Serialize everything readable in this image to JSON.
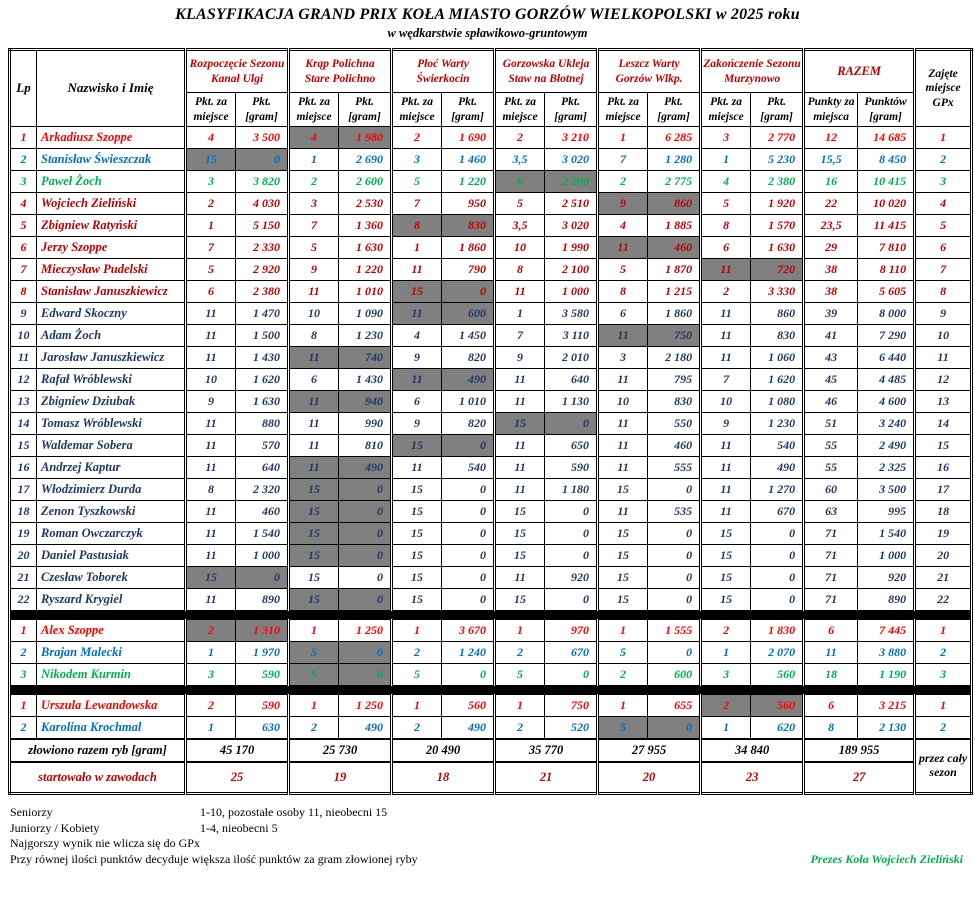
{
  "title": "KLASYFIKACJA GRAND PRIX KOŁA MIASTO GORZÓW WIELKOPOLSKI w 2025 roku",
  "subtitle": "w wędkarstwie spławikowo-gruntowym",
  "colors": {
    "red": "#FF0000",
    "blue": "#0070C0",
    "green": "#00B050",
    "darkred": "#C00000",
    "navy": "#1F3864",
    "header_red": "#C00000",
    "gray_cell": "#808080"
  },
  "header": {
    "lp": "Lp",
    "name": "Nazwisko i Imię",
    "events": [
      {
        "line1": "Rozpoczęcie Sezonu",
        "line2": "Kanał Ulgi"
      },
      {
        "line1": "Krąp Polichna",
        "line2": "Stare Polichno"
      },
      {
        "line1": "Płoć Warty",
        "line2": "Świerkocin"
      },
      {
        "line1": "Gorzowska Ukleja",
        "line2": "Staw na Błotnej"
      },
      {
        "line1": "Leszcz Warty",
        "line2": "Gorzów Wlkp."
      },
      {
        "line1": "Zakończenie Sezonu",
        "line2": "Murzynowo"
      }
    ],
    "razem": "RAZEM",
    "sub_place": "Pkt. za miejsce",
    "sub_gram": "Pkt. [gram]",
    "razem_points": "Punkty za miejsca",
    "razem_gram": "Punktów [gram]",
    "gpx": "Zajęte miejsce GPx"
  },
  "sections": [
    {
      "name": "seniorzy",
      "rows": [
        {
          "lp": "1",
          "name": "Arkadiusz Szoppe",
          "color": "red",
          "cells": [
            "4",
            "3 500",
            "4",
            "1 980",
            "2",
            "1 690",
            "2",
            "3 210",
            "1",
            "6 285",
            "3",
            "2 770",
            "12",
            "14 685",
            "1"
          ],
          "gray": [
            2,
            3
          ]
        },
        {
          "lp": "2",
          "name": "Stanisław Świeszczak",
          "color": "blue",
          "cells": [
            "15",
            "0",
            "1",
            "2 690",
            "3",
            "1 460",
            "3,5",
            "3 020",
            "7",
            "1 280",
            "1",
            "5 230",
            "15,5",
            "8 450",
            "2"
          ],
          "gray": [
            0,
            1
          ]
        },
        {
          "lp": "3",
          "name": "Paweł Żoch",
          "color": "green",
          "cells": [
            "3",
            "3 820",
            "2",
            "2 600",
            "5",
            "1 220",
            "6",
            "2 200",
            "2",
            "2 775",
            "4",
            "2 380",
            "16",
            "10 415",
            "3"
          ],
          "gray": [
            6,
            7
          ]
        },
        {
          "lp": "4",
          "name": "Wojciech Zieliński",
          "color": "darkred",
          "cells": [
            "2",
            "4 030",
            "3",
            "2 530",
            "7",
            "950",
            "5",
            "2 510",
            "9",
            "860",
            "5",
            "1 920",
            "22",
            "10 020",
            "4"
          ],
          "gray": [
            8,
            9
          ]
        },
        {
          "lp": "5",
          "name": "Zbigniew Ratyński",
          "color": "darkred",
          "cells": [
            "1",
            "5 150",
            "7",
            "1 360",
            "8",
            "830",
            "3,5",
            "3 020",
            "4",
            "1 885",
            "8",
            "1 570",
            "23,5",
            "11 415",
            "5"
          ],
          "gray": [
            4,
            5
          ]
        },
        {
          "lp": "6",
          "name": "Jerzy Szoppe",
          "color": "darkred",
          "cells": [
            "7",
            "2 330",
            "5",
            "1 630",
            "1",
            "1 860",
            "10",
            "1 990",
            "11",
            "460",
            "6",
            "1 630",
            "29",
            "7 810",
            "6"
          ],
          "gray": [
            8,
            9
          ]
        },
        {
          "lp": "7",
          "name": "Mieczysław Pudelski",
          "color": "darkred",
          "cells": [
            "5",
            "2 920",
            "9",
            "1 220",
            "11",
            "790",
            "8",
            "2 100",
            "5",
            "1 870",
            "11",
            "720",
            "38",
            "8 110",
            "7"
          ],
          "gray": [
            10,
            11
          ]
        },
        {
          "lp": "8",
          "name": "Stanisław Januszkiewicz",
          "color": "darkred",
          "cells": [
            "6",
            "2 380",
            "11",
            "1 010",
            "15",
            "0",
            "11",
            "1 000",
            "8",
            "1 215",
            "2",
            "3 330",
            "38",
            "5 605",
            "8"
          ],
          "gray": [
            4,
            5
          ]
        },
        {
          "lp": "9",
          "name": "Edward Skoczny",
          "color": "navy",
          "cells": [
            "11",
            "1 470",
            "10",
            "1 090",
            "11",
            "600",
            "1",
            "3 580",
            "6",
            "1 860",
            "11",
            "860",
            "39",
            "8 000",
            "9"
          ],
          "gray": [
            4,
            5
          ]
        },
        {
          "lp": "10",
          "name": "Adam Żoch",
          "color": "navy",
          "cells": [
            "11",
            "1 500",
            "8",
            "1 230",
            "4",
            "1 450",
            "7",
            "3 110",
            "11",
            "750",
            "11",
            "830",
            "41",
            "7 290",
            "10"
          ],
          "gray": [
            8,
            9
          ]
        },
        {
          "lp": "11",
          "name": "Jarosław Januszkiewicz",
          "color": "navy",
          "cells": [
            "11",
            "1 430",
            "11",
            "740",
            "9",
            "820",
            "9",
            "2 010",
            "3",
            "2 180",
            "11",
            "1 060",
            "43",
            "6 440",
            "11"
          ],
          "gray": [
            2,
            3
          ]
        },
        {
          "lp": "12",
          "name": "Rafał Wróblewski",
          "color": "navy",
          "cells": [
            "10",
            "1 620",
            "6",
            "1 430",
            "11",
            "490",
            "11",
            "640",
            "11",
            "795",
            "7",
            "1 620",
            "45",
            "4 485",
            "12"
          ],
          "gray": [
            4,
            5
          ]
        },
        {
          "lp": "13",
          "name": "Zbigniew Dziubak",
          "color": "navy",
          "cells": [
            "9",
            "1 630",
            "11",
            "940",
            "6",
            "1 010",
            "11",
            "1 130",
            "10",
            "830",
            "10",
            "1 080",
            "46",
            "4 600",
            "13"
          ],
          "gray": [
            2,
            3
          ]
        },
        {
          "lp": "14",
          "name": "Tomasz Wróblewski",
          "color": "navy",
          "cells": [
            "11",
            "880",
            "11",
            "990",
            "9",
            "820",
            "15",
            "0",
            "11",
            "550",
            "9",
            "1 230",
            "51",
            "3 240",
            "14"
          ],
          "gray": [
            6,
            7
          ]
        },
        {
          "lp": "15",
          "name": "Waldemar Sobera",
          "color": "navy",
          "cells": [
            "11",
            "570",
            "11",
            "810",
            "15",
            "0",
            "11",
            "650",
            "11",
            "460",
            "11",
            "540",
            "55",
            "2 490",
            "15"
          ],
          "gray": [
            4,
            5
          ]
        },
        {
          "lp": "16",
          "name": "Andrzej Kaptur",
          "color": "navy",
          "cells": [
            "11",
            "640",
            "11",
            "490",
            "11",
            "540",
            "11",
            "590",
            "11",
            "555",
            "11",
            "490",
            "55",
            "2 325",
            "16"
          ],
          "gray": [
            2,
            3
          ]
        },
        {
          "lp": "17",
          "name": "Włodzimierz Durda",
          "color": "navy",
          "cells": [
            "8",
            "2 320",
            "15",
            "0",
            "15",
            "0",
            "11",
            "1 180",
            "15",
            "0",
            "11",
            "1 270",
            "60",
            "3 500",
            "17"
          ],
          "gray": [
            2,
            3
          ]
        },
        {
          "lp": "18",
          "name": "Zenon Tyszkowski",
          "color": "navy",
          "cells": [
            "11",
            "460",
            "15",
            "0",
            "15",
            "0",
            "15",
            "0",
            "11",
            "535",
            "11",
            "670",
            "63",
            "995",
            "18"
          ],
          "gray": [
            2,
            3
          ]
        },
        {
          "lp": "19",
          "name": "Roman Owczarczyk",
          "color": "navy",
          "cells": [
            "11",
            "1 540",
            "15",
            "0",
            "15",
            "0",
            "15",
            "0",
            "15",
            "0",
            "15",
            "0",
            "71",
            "1 540",
            "19"
          ],
          "gray": [
            2,
            3
          ]
        },
        {
          "lp": "20",
          "name": "Daniel Pastusiak",
          "color": "navy",
          "cells": [
            "11",
            "1 000",
            "15",
            "0",
            "15",
            "0",
            "15",
            "0",
            "15",
            "0",
            "15",
            "0",
            "71",
            "1 000",
            "20"
          ],
          "gray": [
            2,
            3
          ]
        },
        {
          "lp": "21",
          "name": "Czesław Toborek",
          "color": "navy",
          "cells": [
            "15",
            "0",
            "15",
            "0",
            "15",
            "0",
            "11",
            "920",
            "15",
            "0",
            "15",
            "0",
            "71",
            "920",
            "21"
          ],
          "gray": [
            0,
            1
          ]
        },
        {
          "lp": "22",
          "name": "Ryszard Krygiel",
          "color": "navy",
          "cells": [
            "11",
            "890",
            "15",
            "0",
            "15",
            "0",
            "15",
            "0",
            "15",
            "0",
            "15",
            "0",
            "71",
            "890",
            "22"
          ],
          "gray": [
            2,
            3
          ]
        }
      ]
    },
    {
      "name": "juniorzy",
      "rows": [
        {
          "lp": "1",
          "name": "Alex Szoppe",
          "color": "red",
          "cells": [
            "2",
            "1 310",
            "1",
            "1 250",
            "1",
            "3 670",
            "1",
            "970",
            "1",
            "1 555",
            "2",
            "1 830",
            "6",
            "7 445",
            "1"
          ],
          "gray": [
            0,
            1
          ]
        },
        {
          "lp": "2",
          "name": "Brajan Malecki",
          "color": "blue",
          "cells": [
            "1",
            "1 970",
            "5",
            "0",
            "2",
            "1 240",
            "2",
            "670",
            "5",
            "0",
            "1",
            "2 070",
            "11",
            "3 880",
            "2"
          ],
          "gray": [
            2,
            3
          ]
        },
        {
          "lp": "3",
          "name": "Nikodem Kurmin",
          "color": "green",
          "cells": [
            "3",
            "590",
            "5",
            "0",
            "5",
            "0",
            "5",
            "0",
            "2",
            "600",
            "3",
            "560",
            "18",
            "1 190",
            "3"
          ],
          "gray": [
            2,
            3
          ]
        }
      ]
    },
    {
      "name": "kobiety",
      "rows": [
        {
          "lp": "1",
          "name": "Urszula Lewandowska",
          "color": "red",
          "cells": [
            "2",
            "590",
            "1",
            "1 250",
            "1",
            "560",
            "1",
            "750",
            "1",
            "655",
            "2",
            "560",
            "6",
            "3 215",
            "1"
          ],
          "gray": [
            10,
            11
          ]
        },
        {
          "lp": "2",
          "name": "Karolina Krochmal",
          "color": "blue",
          "cells": [
            "1",
            "630",
            "2",
            "490",
            "2",
            "490",
            "2",
            "520",
            "5",
            "0",
            "1",
            "620",
            "8",
            "2 130",
            "2"
          ],
          "gray": [
            8,
            9
          ]
        }
      ]
    }
  ],
  "footer": {
    "caught_label": "złowiono razem ryb [gram]",
    "caught_values": [
      "45 170",
      "25 730",
      "20 490",
      "35 770",
      "27 955",
      "34 840"
    ],
    "caught_total": "189 955",
    "started_label": "startowało w zawodach",
    "started_values": [
      "25",
      "19",
      "18",
      "21",
      "20",
      "23"
    ],
    "started_total": "27",
    "season_note": "przez cały sezon"
  },
  "notes": [
    {
      "label": "Seniorzy",
      "text": "1-10, pozostałe osoby 11, nieobecni 15"
    },
    {
      "label": "Juniorzy / Kobiety",
      "text": "1-4, nieobecni 5"
    },
    {
      "label": "",
      "text": "Najgorszy wynik nie wlicza się do GPx"
    },
    {
      "label": "",
      "text": "Przy równej ilości punktów decyduje większa ilość punktów za gram złowionej ryby"
    }
  ],
  "signature": "Prezes Koła Wojciech Zieliński"
}
